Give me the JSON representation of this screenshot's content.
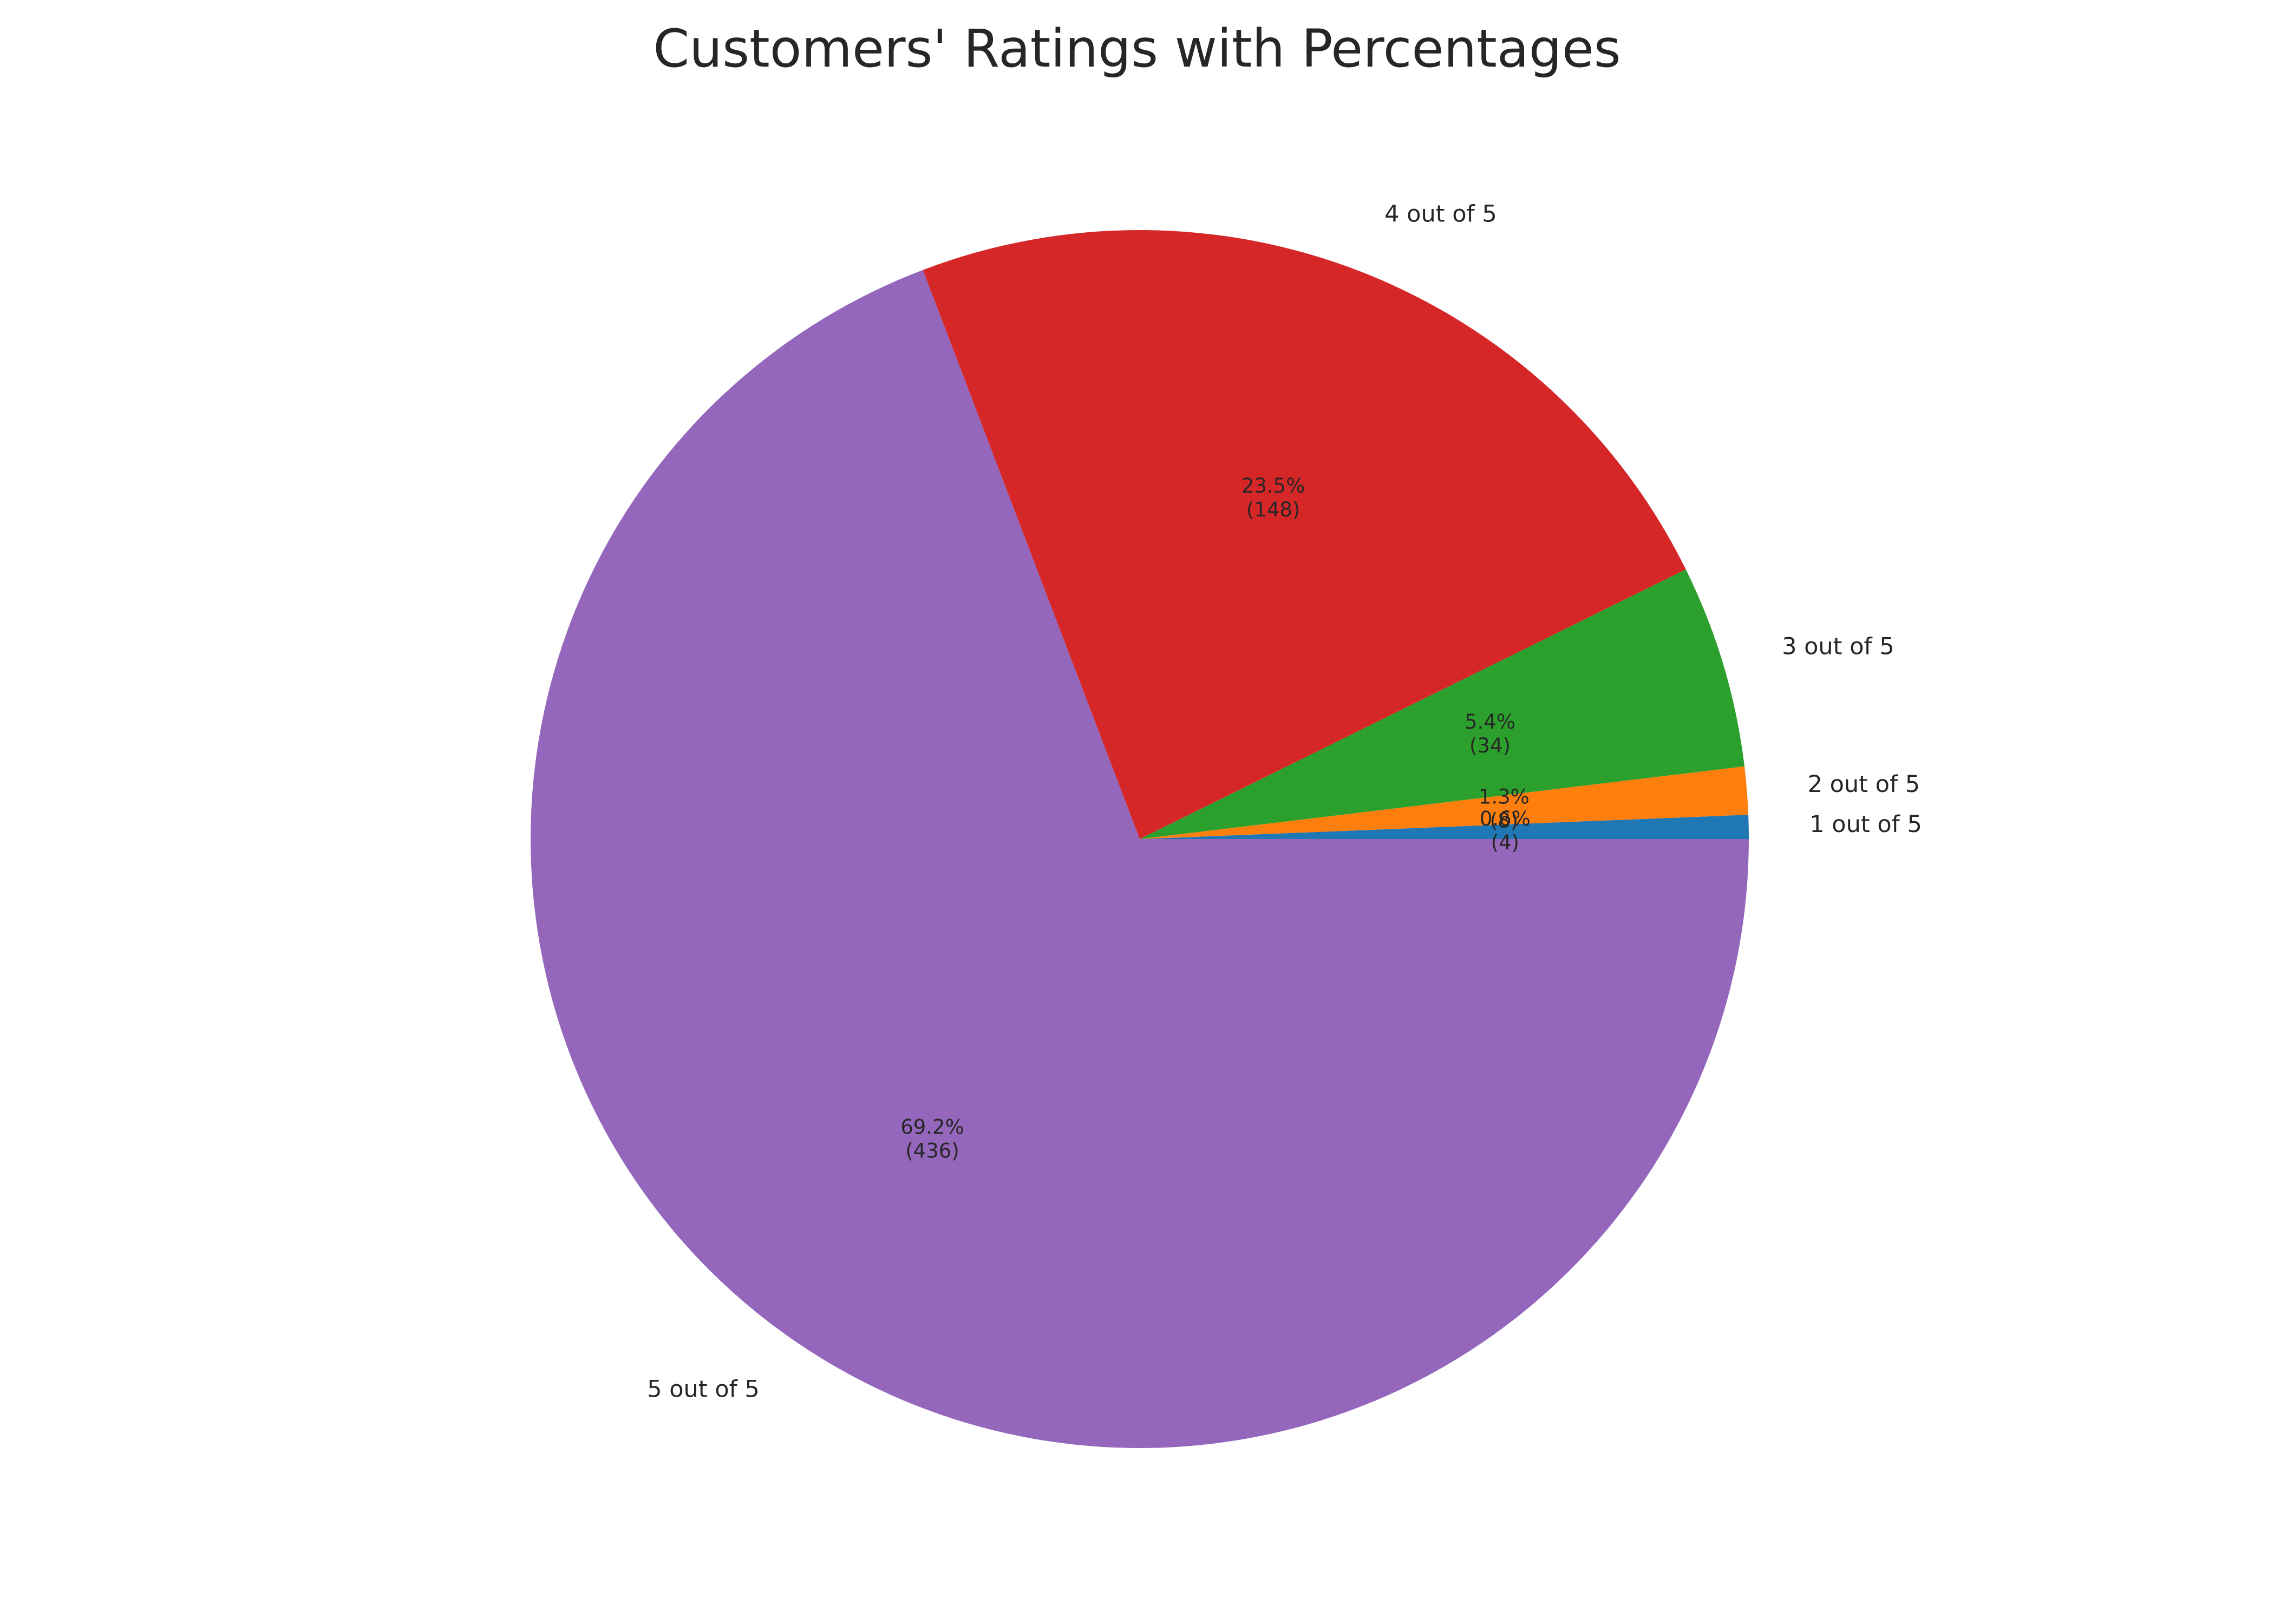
{
  "chart_data": {
    "type": "pie",
    "title": "Customers' Ratings with Percentages",
    "categories": [
      "1 out of 5",
      "2 out of 5",
      "3 out of 5",
      "4 out of 5",
      "5 out of 5"
    ],
    "values": [
      4,
      8,
      34,
      148,
      436
    ],
    "percent_labels": [
      "0.6%",
      "1.3%",
      "5.4%",
      "23.5%",
      "69.2%"
    ],
    "count_labels": [
      "(4)",
      "(8)",
      "(34)",
      "(148)",
      "(436)"
    ],
    "colors": [
      "#1f77b4",
      "#ff7f0e",
      "#2ca02c",
      "#d62728",
      "#9467bd"
    ],
    "start_angle_deg": 0,
    "direction": "counterclockwise"
  }
}
